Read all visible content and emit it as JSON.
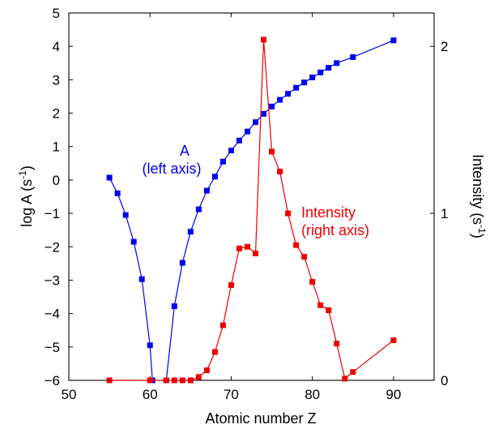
{
  "chart_data": {
    "type": "line",
    "xlabel": "Atomic number Z",
    "ylabel_left": "log A (s",
    "ylabel_left_sup": "-1",
    "ylabel_left_suffix": ")",
    "ylabel_right": "Intensity (s",
    "ylabel_right_sup": "-1",
    "ylabel_right_suffix": ")",
    "xlim": [
      50,
      95
    ],
    "ylim_left": [
      -6,
      5
    ],
    "ylim_right": [
      0,
      2.2
    ],
    "x_ticks": [
      50,
      60,
      70,
      80,
      90
    ],
    "y_left_ticks": [
      -6,
      -5,
      -4,
      -3,
      -2,
      -1,
      0,
      1,
      2,
      3,
      4,
      5
    ],
    "y_right_ticks": [
      0,
      1,
      2
    ],
    "grid": false,
    "series": [
      {
        "axis": "left",
        "color": "#0000ee",
        "marker": "square",
        "segments": [
          {
            "x": [
              55,
              56,
              57,
              58,
              59,
              60,
              60.3
            ],
            "y": [
              0.07,
              -0.4,
              -1.05,
              -1.85,
              -2.97,
              -4.95,
              -6.0
            ]
          },
          {
            "x": [
              62,
              63,
              64,
              65,
              66,
              67,
              68,
              69,
              70,
              71,
              72,
              73,
              74,
              75,
              76,
              77,
              78,
              79,
              80,
              81,
              82,
              83,
              85,
              90
            ],
            "y": [
              -6.0,
              -3.78,
              -2.48,
              -1.55,
              -0.88,
              -0.32,
              0.1,
              0.55,
              0.88,
              1.18,
              1.45,
              1.73,
              1.98,
              2.2,
              2.4,
              2.58,
              2.76,
              2.92,
              3.07,
              3.22,
              3.36,
              3.5,
              3.68,
              4.18
            ]
          }
        ]
      },
      {
        "axis": "right",
        "color": "#ee0000",
        "marker": "square",
        "segments": [
          {
            "x": [
              55,
              60,
              62,
              63,
              64,
              65,
              66,
              67,
              68,
              69,
              70,
              71,
              72,
              73,
              74,
              75,
              76,
              77,
              78,
              79,
              80,
              81,
              82,
              83,
              84,
              85,
              90
            ],
            "y": [
              0.0,
              0.0,
              0.0,
              0.0,
              0.0,
              0.0,
              0.02,
              0.06,
              0.17,
              0.33,
              0.57,
              0.79,
              0.8,
              0.76,
              2.04,
              1.37,
              1.25,
              1.0,
              0.81,
              0.74,
              0.59,
              0.45,
              0.42,
              0.22,
              0.01,
              0.05,
              0.24
            ]
          }
        ]
      }
    ],
    "annotations": [
      {
        "lines": [
          "A",
          "(left axis)"
        ],
        "color": "#0000ee"
      },
      {
        "lines": [
          "Intensity",
          "(right axis)"
        ],
        "color": "#ee0000"
      }
    ]
  }
}
